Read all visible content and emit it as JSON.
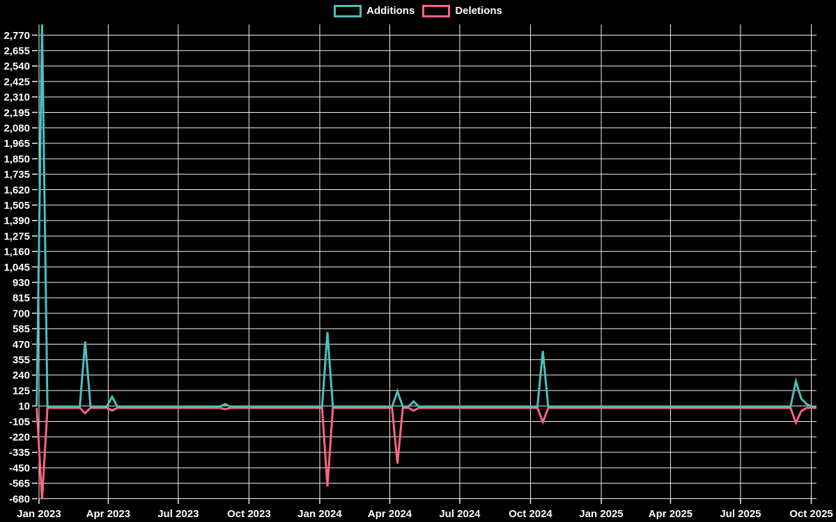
{
  "legend": {
    "items": [
      {
        "label": "Additions",
        "color": "#4bc0c0"
      },
      {
        "label": "Deletions",
        "color": "#ff6384"
      }
    ]
  },
  "chart_data": {
    "type": "line",
    "title": "",
    "background_color": "#000000",
    "grid_color": "#f2f2f2",
    "text_color": "#ffffff",
    "legend_position": "top",
    "baseline_value": 0,
    "week_interval_days": 7,
    "first_week": "2022-12-29",
    "last_week": "2025-10-09",
    "x_axis": {
      "tick_labels": [
        "Jan 2023",
        "Apr 2023",
        "Jul 2023",
        "Oct 2023",
        "Jan 2024",
        "Apr 2024",
        "Jul 2024",
        "Oct 2024",
        "Jan 2025",
        "Apr 2025",
        "Jul 2025",
        "Oct 2025"
      ],
      "tick_dates": [
        "2023-01-01",
        "2023-04-01",
        "2023-07-01",
        "2023-10-01",
        "2024-01-01",
        "2024-04-01",
        "2024-07-01",
        "2024-10-01",
        "2025-01-01",
        "2025-04-01",
        "2025-07-01",
        "2025-10-01"
      ]
    },
    "y_axis": {
      "min": -680,
      "max": 2845,
      "step": 115,
      "tick_values": [
        2770,
        2655,
        2540,
        2425,
        2310,
        2195,
        2080,
        1965,
        1850,
        1735,
        1620,
        1505,
        1390,
        1275,
        1160,
        1045,
        930,
        815,
        700,
        585,
        470,
        355,
        240,
        125,
        10,
        -105,
        -220,
        -335,
        -450,
        -565,
        -680
      ],
      "tick_labels": [
        "2,770",
        "2,655",
        "2,540",
        "2,425",
        "2,310",
        "2,195",
        "2,080",
        "1,965",
        "1,850",
        "1,735",
        "1,620",
        "1,505",
        "1,390",
        "1,275",
        "1,160",
        "1,045",
        "930",
        "815",
        "700",
        "585",
        "470",
        "355",
        "240",
        "125",
        "10",
        "-105",
        "-220",
        "-335",
        "-450",
        "-565",
        "-680"
      ]
    },
    "series": [
      {
        "name": "Additions",
        "color": "#4bc0c0",
        "nonzero_weeks": {
          "2023-01-05": 2845,
          "2023-03-02": 485,
          "2023-04-06": 75,
          "2023-08-31": 20,
          "2024-01-11": 555,
          "2024-04-11": 115,
          "2024-05-02": 40,
          "2024-10-17": 415,
          "2025-09-11": 190,
          "2025-09-18": 60,
          "2025-09-25": 20
        }
      },
      {
        "name": "Deletions",
        "color": "#ff6384",
        "nonzero_weeks": {
          "2023-01-05": -680,
          "2023-03-02": -40,
          "2023-04-06": -20,
          "2023-08-31": -10,
          "2024-01-11": -585,
          "2024-04-11": -415,
          "2024-05-02": -20,
          "2024-10-17": -105,
          "2025-09-11": -110,
          "2025-09-18": -25
        }
      }
    ]
  }
}
